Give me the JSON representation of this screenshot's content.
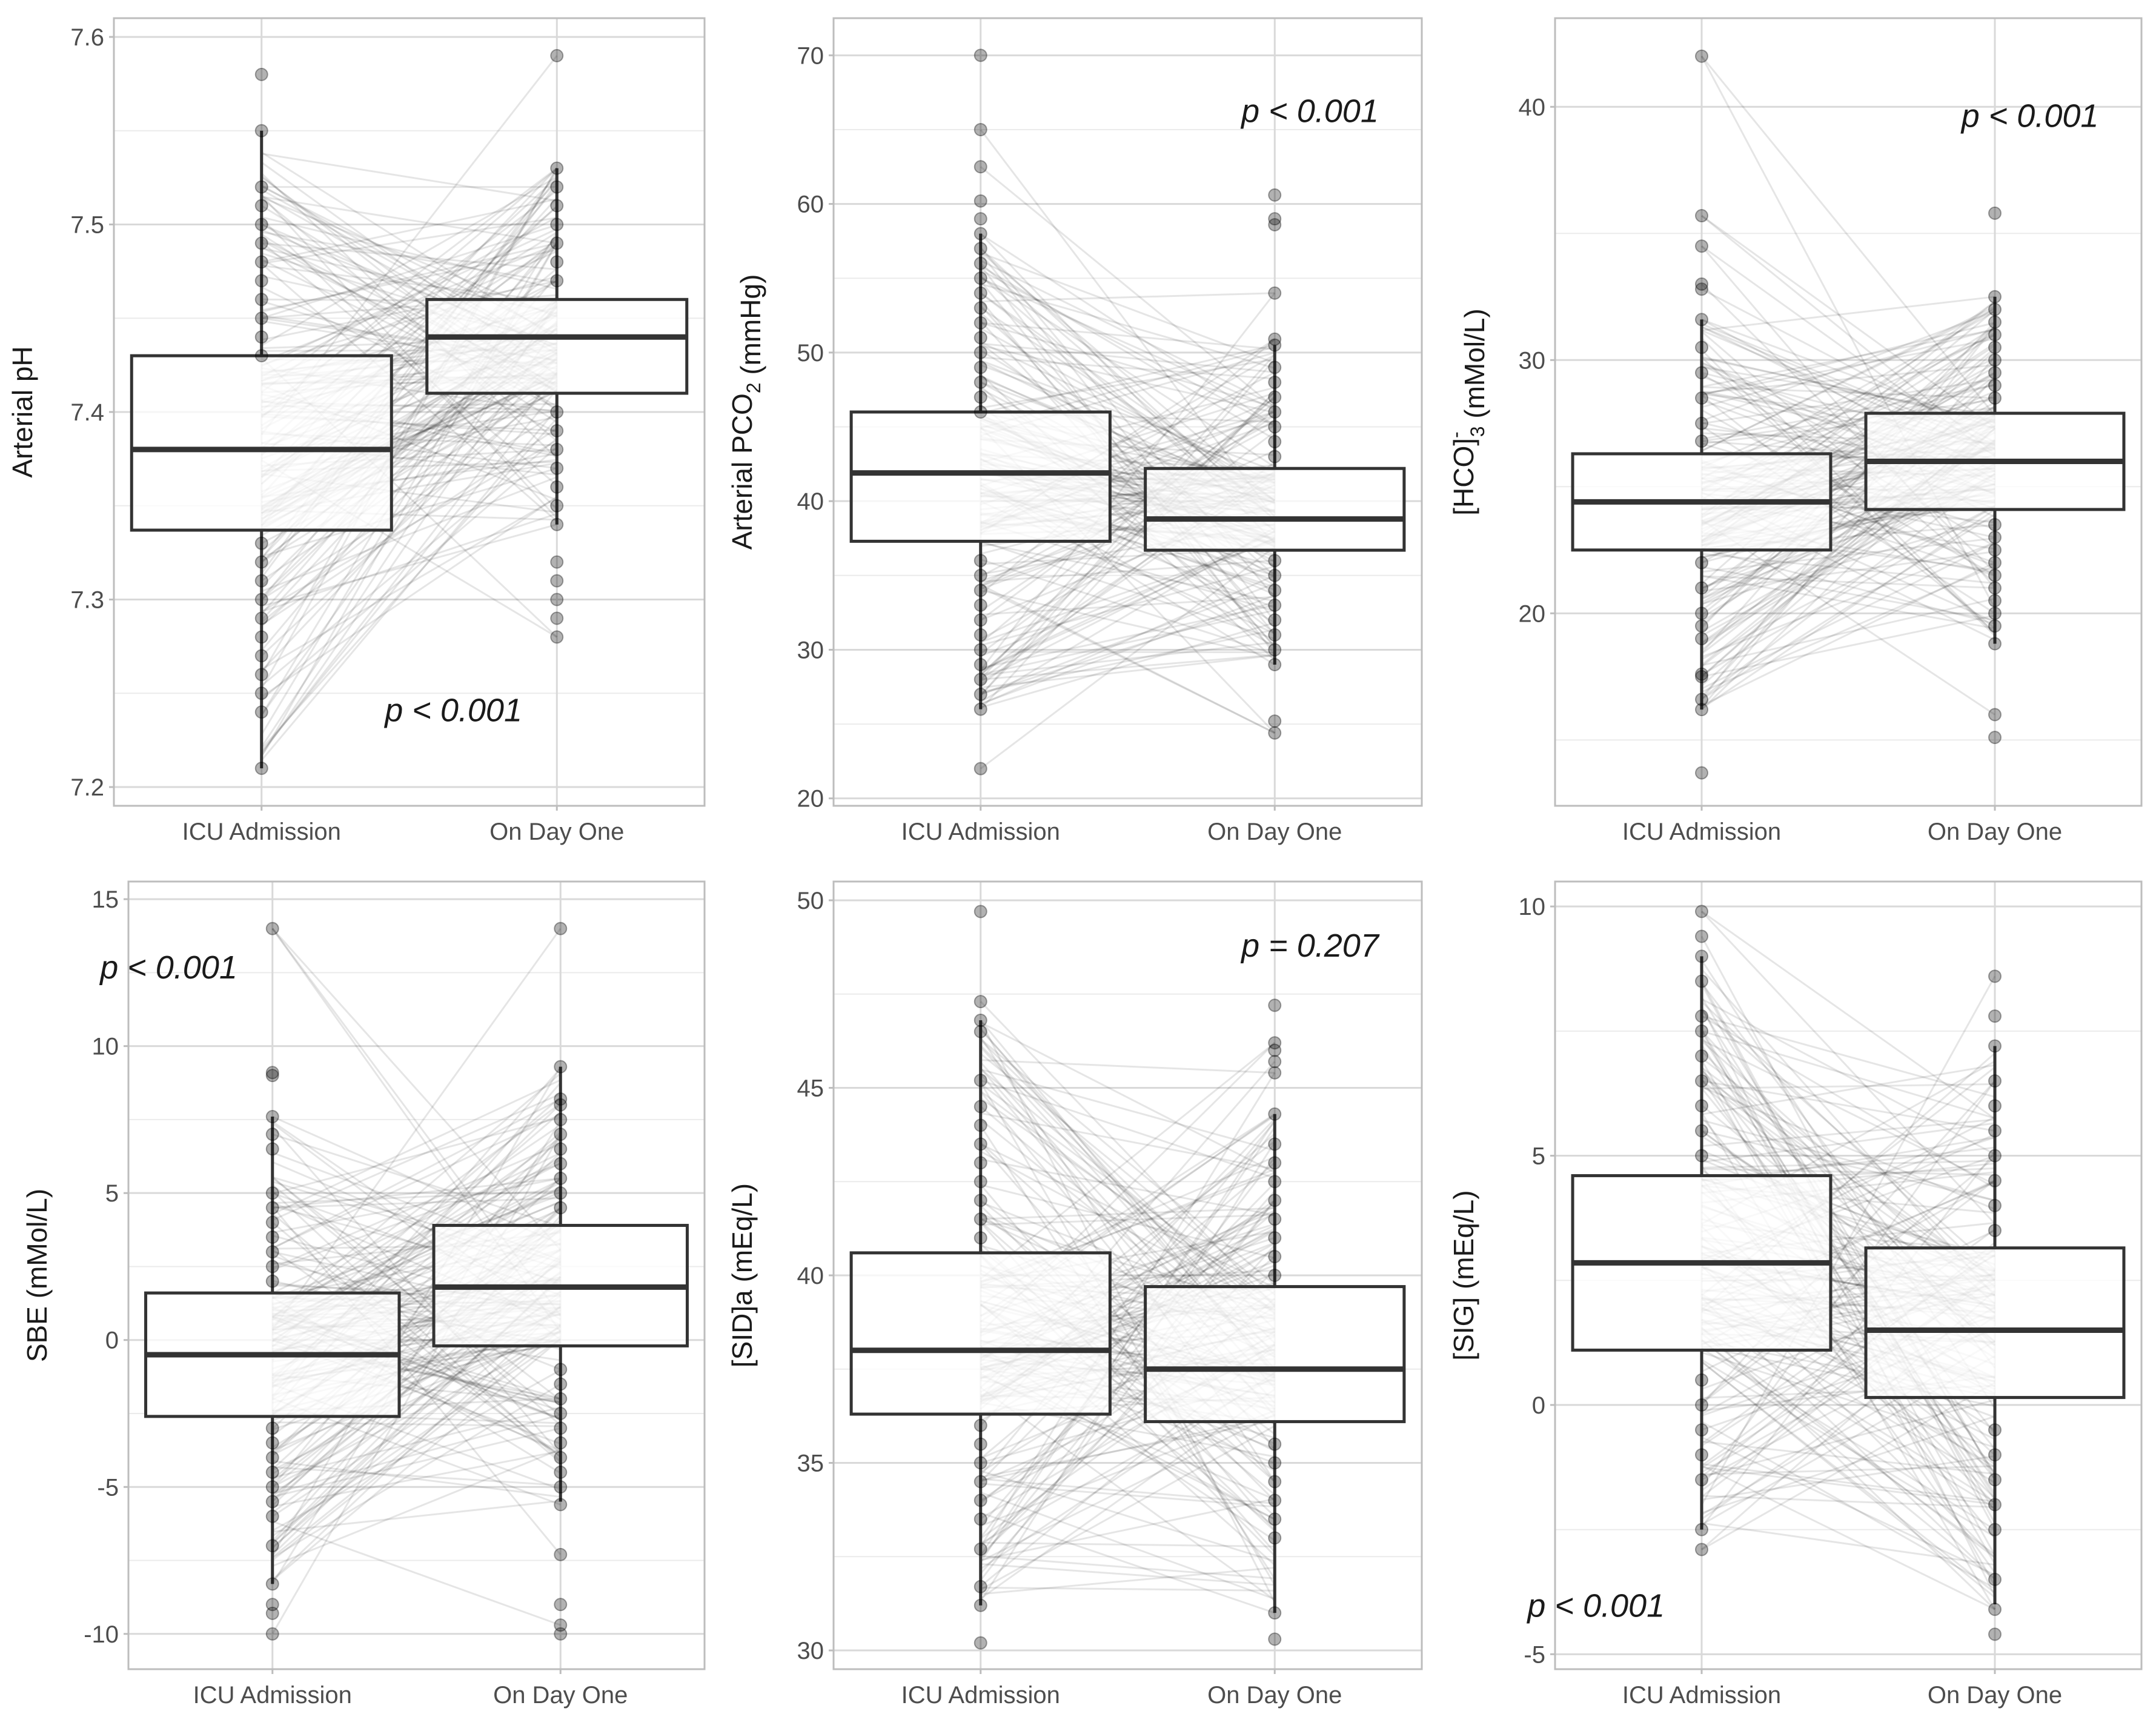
{
  "figure": {
    "categories": [
      "ICU Admission",
      "On Day One"
    ]
  },
  "chart_data": [
    {
      "type": "box",
      "title": "",
      "ylabel": "Arterial pH",
      "ylim": [
        7.19,
        7.61
      ],
      "yticks": [
        7.2,
        7.3,
        7.4,
        7.5,
        7.6
      ],
      "ytick_labels": [
        "7.2",
        "7.3",
        "7.4",
        "7.5",
        "7.6"
      ],
      "categories": [
        "ICU Admission",
        "On Day One"
      ],
      "boxes": [
        {
          "q1": 7.337,
          "median": 7.38,
          "q3": 7.43,
          "whisker_low": 7.21,
          "whisker_high": 7.55
        },
        {
          "q1": 7.41,
          "median": 7.44,
          "q3": 7.46,
          "whisker_low": 7.34,
          "whisker_high": 7.53
        }
      ],
      "points": [
        [
          7.58,
          7.55,
          7.52,
          7.51,
          7.5,
          7.49,
          7.48,
          7.47,
          7.46,
          7.45,
          7.44,
          7.43,
          7.33,
          7.32,
          7.31,
          7.3,
          7.29,
          7.28,
          7.27,
          7.26,
          7.25,
          7.24,
          7.21
        ],
        [
          7.59,
          7.53,
          7.52,
          7.51,
          7.5,
          7.49,
          7.48,
          7.47,
          7.4,
          7.39,
          7.38,
          7.37,
          7.36,
          7.35,
          7.34,
          7.32,
          7.31,
          7.3,
          7.29,
          7.28
        ]
      ],
      "pvalue": "p < 0.001",
      "pvalue_pos": [
        1.65,
        7.235
      ]
    },
    {
      "type": "box",
      "title": "",
      "ylabel": "Arterial PCO",
      "ylabel_sub": "2",
      "ylabel_suffix": " (mmHg)",
      "ylim": [
        19.5,
        72.5
      ],
      "yticks": [
        20,
        30,
        40,
        50,
        60,
        70
      ],
      "ytick_labels": [
        "20",
        "30",
        "40",
        "50",
        "60",
        "70"
      ],
      "categories": [
        "ICU Admission",
        "On Day One"
      ],
      "boxes": [
        {
          "q1": 37.3,
          "median": 41.9,
          "q3": 46.0,
          "whisker_low": 26.0,
          "whisker_high": 58.0
        },
        {
          "q1": 36.7,
          "median": 38.8,
          "q3": 42.2,
          "whisker_low": 29.0,
          "whisker_high": 50.5
        }
      ],
      "points": [
        [
          70.0,
          65.0,
          62.5,
          60.2,
          59.0,
          58.0,
          57.0,
          56.0,
          55.0,
          54.0,
          53.0,
          52.0,
          51.0,
          50.0,
          49.0,
          48.0,
          47.0,
          46.0,
          36.0,
          35.0,
          34.0,
          33.0,
          32.0,
          31.0,
          30.0,
          29.0,
          28.0,
          27.0,
          26.0,
          22.0
        ],
        [
          60.6,
          59.0,
          58.6,
          54.0,
          50.9,
          50.5,
          49.0,
          48.0,
          47.0,
          46.0,
          45.0,
          44.0,
          43.0,
          36.0,
          35.0,
          34.0,
          33.0,
          32.0,
          31.0,
          30.0,
          29.0,
          25.2,
          24.4
        ]
      ],
      "pvalue": "p < 0.001",
      "pvalue_pos": [
        2.12,
        65.5
      ]
    },
    {
      "type": "box",
      "title": "",
      "ylabel": "[HCO]",
      "ylabel_sub": "3",
      "ylabel_sup": "-",
      "ylabel_suffix": " (mMol/L)",
      "ylim": [
        12.4,
        43.5
      ],
      "yticks": [
        20,
        30,
        40
      ],
      "ytick_labels": [
        "20",
        "30",
        "40"
      ],
      "categories": [
        "ICU Admission",
        "On Day One"
      ],
      "boxes": [
        {
          "q1": 22.5,
          "median": 24.4,
          "q3": 26.3,
          "whisker_low": 16.2,
          "whisker_high": 31.6
        },
        {
          "q1": 24.1,
          "median": 26.0,
          "q3": 27.9,
          "whisker_low": 18.8,
          "whisker_high": 32.5
        }
      ],
      "points": [
        [
          42.0,
          35.7,
          34.5,
          33.0,
          32.8,
          31.6,
          30.5,
          29.5,
          28.5,
          27.5,
          26.8,
          22.0,
          21.0,
          20.0,
          19.5,
          19.0,
          17.6,
          17.5,
          16.6,
          16.2,
          13.7
        ],
        [
          35.8,
          32.5,
          32.0,
          31.5,
          31.0,
          30.5,
          30.0,
          29.5,
          29.0,
          28.5,
          23.5,
          23.0,
          22.5,
          22.0,
          21.5,
          21.0,
          20.5,
          20.0,
          19.5,
          18.8,
          16.0,
          15.1
        ]
      ],
      "pvalue": "p < 0.001",
      "pvalue_pos": [
        2.12,
        39.2
      ]
    },
    {
      "type": "box",
      "title": "",
      "ylabel": "SBE (mMol/L)",
      "ylim": [
        -11.2,
        15.6
      ],
      "yticks": [
        -10,
        -5,
        0,
        5,
        10,
        15
      ],
      "ytick_labels": [
        "-10",
        "-5",
        "0",
        "5",
        "10",
        "15"
      ],
      "categories": [
        "ICU Admission",
        "On Day One"
      ],
      "boxes": [
        {
          "q1": -2.6,
          "median": -0.5,
          "q3": 1.6,
          "whisker_low": -8.3,
          "whisker_high": 7.6
        },
        {
          "q1": -0.2,
          "median": 1.8,
          "q3": 3.9,
          "whisker_low": -5.5,
          "whisker_high": 9.3
        }
      ],
      "points": [
        [
          14.0,
          9.1,
          9.0,
          7.6,
          7.0,
          6.5,
          5.0,
          4.5,
          4.0,
          3.5,
          3.0,
          2.5,
          2.0,
          -3.0,
          -3.5,
          -4.0,
          -4.5,
          -5.0,
          -5.5,
          -6.0,
          -7.0,
          -8.3,
          -9.0,
          -9.3,
          -10.0
        ],
        [
          14.0,
          9.3,
          8.2,
          8.0,
          7.5,
          7.0,
          6.5,
          6.0,
          5.5,
          5.0,
          4.5,
          -1.0,
          -1.5,
          -2.0,
          -2.5,
          -3.0,
          -3.5,
          -4.0,
          -4.5,
          -5.0,
          -5.6,
          -7.3,
          -9.0,
          -9.7,
          -10.0
        ]
      ],
      "pvalue": "p < 0.001",
      "pvalue_pos": [
        0.64,
        12.3
      ]
    },
    {
      "type": "box",
      "title": "",
      "ylabel": "[SID]a (mEq/L)",
      "ylim": [
        29.5,
        50.5
      ],
      "yticks": [
        30,
        35,
        40,
        45,
        50
      ],
      "ytick_labels": [
        "30",
        "35",
        "40",
        "45",
        "50"
      ],
      "categories": [
        "ICU Admission",
        "On Day One"
      ],
      "boxes": [
        {
          "q1": 36.3,
          "median": 38.0,
          "q3": 40.6,
          "whisker_low": 31.2,
          "whisker_high": 46.8
        },
        {
          "q1": 36.1,
          "median": 37.5,
          "q3": 39.7,
          "whisker_low": 31.0,
          "whisker_high": 44.3
        }
      ],
      "points": [
        [
          49.7,
          47.3,
          46.8,
          46.5,
          45.2,
          44.5,
          44.0,
          43.5,
          43.0,
          42.5,
          42.0,
          41.5,
          41.0,
          36.0,
          35.5,
          35.0,
          34.5,
          34.0,
          33.5,
          32.7,
          31.7,
          31.2,
          30.2
        ],
        [
          47.2,
          46.2,
          46.0,
          45.7,
          45.4,
          44.3,
          43.5,
          43.0,
          42.5,
          42.0,
          41.5,
          41.0,
          40.5,
          40.0,
          35.5,
          35.0,
          34.5,
          34.0,
          33.5,
          33.0,
          31.0,
          30.3
        ]
      ],
      "pvalue": "p = 0.207",
      "pvalue_pos": [
        2.12,
        48.5
      ]
    },
    {
      "type": "box",
      "title": "",
      "ylabel": "[SIG] (mEq/L)",
      "ylim": [
        -5.3,
        10.5
      ],
      "yticks": [
        -5,
        0,
        5,
        10
      ],
      "ytick_labels": [
        "-5",
        "0",
        "5",
        "10"
      ],
      "categories": [
        "ICU Admission",
        "On Day One"
      ],
      "boxes": [
        {
          "q1": 1.1,
          "median": 2.85,
          "q3": 4.6,
          "whisker_low": -2.5,
          "whisker_high": 9.0
        },
        {
          "q1": 0.15,
          "median": 1.5,
          "q3": 3.15,
          "whisker_low": -4.0,
          "whisker_high": 7.2
        }
      ],
      "points": [
        [
          9.9,
          9.4,
          9.0,
          8.5,
          7.8,
          7.5,
          7.0,
          6.5,
          6.0,
          5.5,
          5.0,
          0.5,
          0.0,
          -0.5,
          -1.0,
          -1.5,
          -2.5,
          -2.9
        ],
        [
          8.6,
          7.8,
          7.2,
          6.5,
          6.0,
          5.5,
          5.0,
          4.5,
          4.0,
          3.5,
          -0.5,
          -1.0,
          -1.5,
          -2.0,
          -2.5,
          -3.5,
          -4.1,
          -4.6
        ]
      ],
      "pvalue": "p < 0.001",
      "pvalue_pos": [
        0.64,
        -4.25
      ]
    }
  ]
}
